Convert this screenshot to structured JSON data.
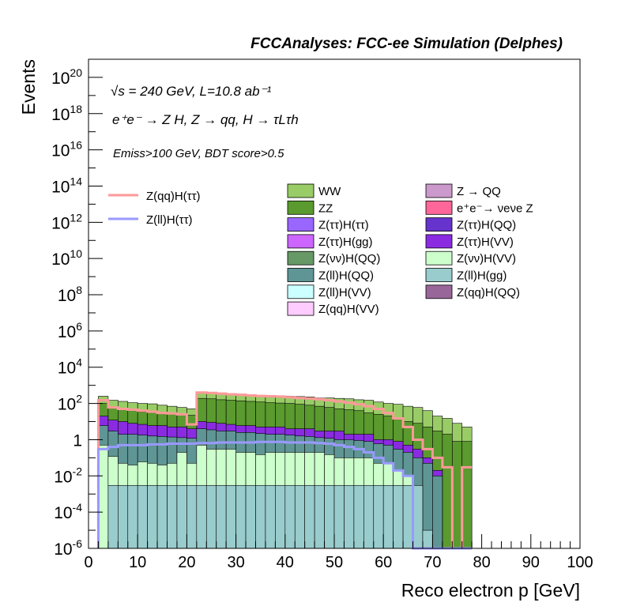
{
  "header": {
    "title": "FCCAnalyses: FCC-ee Simulation (Delphes)"
  },
  "annotations": {
    "energy_lumi": "√s = 240 GeV, L=10.8 ab⁻¹",
    "process": "e⁺e⁻ → Z H, Z → qq, H → τLτh",
    "selection": "Emiss>100 GeV, BDT score>0.5"
  },
  "chart_data": {
    "type": "area",
    "title": "FCCAnalyses: FCC-ee Simulation (Delphes)",
    "xlabel": "Reco electron p [GeV]",
    "ylabel": "Events",
    "xlim": [
      0,
      100
    ],
    "ylim": [
      1e-06,
      1e+21
    ],
    "yscale": "log",
    "grid": false,
    "x_ticks": [
      "0",
      "10",
      "20",
      "30",
      "40",
      "50",
      "60",
      "70",
      "80",
      "90",
      "100"
    ],
    "y_ticks": [
      {
        "base": "10",
        "exp": "-6",
        "value": 1e-06
      },
      {
        "base": "10",
        "exp": "-4",
        "value": 0.0001
      },
      {
        "base": "10",
        "exp": "-2",
        "value": 0.01
      },
      {
        "base": "1",
        "exp": "",
        "value": 1
      },
      {
        "base": "10",
        "exp": "2",
        "value": 100.0
      },
      {
        "base": "10",
        "exp": "4",
        "value": 10000.0
      },
      {
        "base": "10",
        "exp": "6",
        "value": 1000000.0
      },
      {
        "base": "10",
        "exp": "8",
        "value": 100000000.0
      },
      {
        "base": "10",
        "exp": "10",
        "value": 10000000000.0
      },
      {
        "base": "10",
        "exp": "12",
        "value": 1000000000000.0
      },
      {
        "base": "10",
        "exp": "14",
        "value": 100000000000000.0
      },
      {
        "base": "10",
        "exp": "16",
        "value": 1e+16
      },
      {
        "base": "10",
        "exp": "18",
        "value": 1e+18
      },
      {
        "base": "10",
        "exp": "20",
        "value": 1e+20
      }
    ],
    "bin_edges_start": 2,
    "bin_width": 2,
    "stack_tops": [
      {
        "name": "WW",
        "color": "#99cc66",
        "values": [
          250,
          150,
          130,
          110,
          100,
          95,
          80,
          70,
          60,
          50,
          420,
          420,
          380,
          350,
          330,
          300,
          280,
          270,
          260,
          250,
          240,
          230,
          200,
          200,
          190,
          180,
          160,
          150,
          120,
          100,
          90,
          70,
          60,
          40,
          20,
          15,
          8,
          5
        ]
      },
      {
        "name": "ZZ",
        "color": "#5a9a2e",
        "values": [
          100,
          60,
          50,
          40,
          35,
          32,
          30,
          28,
          25,
          22,
          190,
          180,
          160,
          150,
          140,
          130,
          120,
          110,
          105,
          100,
          90,
          80,
          70,
          60,
          50,
          45,
          40,
          30,
          25,
          20,
          15,
          10,
          8,
          5,
          3,
          2,
          0.8,
          0.8
        ]
      },
      {
        "name": "Z(ττ)H(VV)",
        "color": "#8a2be2",
        "values": [
          20,
          12,
          10,
          8,
          7,
          6,
          6,
          5,
          5,
          4,
          10,
          9,
          8,
          7,
          6,
          6,
          5,
          5,
          5,
          4,
          4,
          4,
          3,
          3,
          3,
          2,
          2,
          2,
          1,
          1,
          0.8,
          0.5,
          0.3,
          0.1,
          0.02,
          0,
          0,
          0
        ]
      },
      {
        "name": "Z(ll)H(QQ)",
        "color": "#5f9595",
        "values": [
          6,
          3,
          2,
          2,
          1.8,
          1.6,
          1.5,
          1.4,
          1.3,
          1.2,
          4,
          3.5,
          3,
          3,
          2.5,
          2.5,
          2.2,
          2,
          2,
          1.8,
          1.6,
          1.5,
          1.3,
          1.2,
          1,
          1,
          0.9,
          0.8,
          0.6,
          0.5,
          0.3,
          0.2,
          0.1,
          0.05,
          0.01,
          0,
          0,
          0
        ]
      },
      {
        "name": "Z(νν)H(VV)",
        "color": "#ccffcc",
        "values": [
          0.5,
          0.12,
          0.05,
          0.04,
          0.06,
          0.05,
          0.04,
          0.05,
          0.2,
          0.05,
          0.5,
          0.3,
          0.3,
          0.3,
          0.2,
          0.2,
          0.15,
          0.2,
          0.2,
          0.2,
          0.2,
          0.2,
          0.2,
          0.15,
          0.1,
          0.1,
          0.1,
          0.1,
          0.05,
          0.05,
          0.02,
          0.01,
          0,
          0,
          0,
          0,
          0,
          0
        ]
      },
      {
        "name": "Z(ll)H(gg)",
        "color": "#99cccc",
        "values": [
          1e-06,
          0.003,
          0.003,
          0.003,
          0.003,
          0.003,
          0.003,
          0.003,
          0.003,
          0.003,
          0.003,
          0.003,
          0.003,
          0.003,
          0.003,
          0.003,
          0.003,
          0.003,
          0.003,
          0.003,
          0.003,
          0.003,
          0.003,
          0.003,
          0.003,
          0.003,
          0.003,
          0.003,
          0.003,
          0.003,
          0.003,
          0.003,
          0.003,
          1e-05,
          1e-06,
          0,
          0,
          0
        ]
      }
    ],
    "series": [
      {
        "name": "Z(qq)H(ττ)",
        "color": "#ff9999",
        "values": [
          150,
          60,
          50,
          45,
          40,
          35,
          30,
          28,
          25,
          7,
          400,
          380,
          350,
          320,
          300,
          280,
          260,
          250,
          240,
          220,
          200,
          190,
          170,
          150,
          130,
          110,
          90,
          70,
          50,
          30,
          15,
          5,
          1,
          0.3,
          0.1,
          0.03,
          1e-06,
          0.03
        ]
      },
      {
        "name": "Z(ll)H(ττ)",
        "color": "#9999ff",
        "values": [
          0.3,
          0.4,
          0.5,
          0.5,
          0.5,
          0.55,
          0.55,
          0.6,
          0.6,
          0.6,
          0.65,
          0.65,
          0.7,
          0.7,
          0.7,
          0.7,
          0.75,
          0.75,
          0.75,
          0.7,
          0.7,
          0.7,
          0.65,
          0.6,
          0.5,
          0.4,
          0.3,
          0.2,
          0.1,
          0.05,
          0.02,
          0.01,
          0,
          0,
          0,
          0,
          0,
          0
        ]
      }
    ],
    "legend_left": [
      {
        "label": "Z(qq)H(ττ)",
        "color": "#ff9999"
      },
      {
        "label": "Z(ll)H(ττ)",
        "color": "#9999ff"
      }
    ],
    "legend_right": [
      {
        "label": "WW",
        "color": "#99cc66"
      },
      {
        "label": "Z → QQ",
        "color": "#cc99cc"
      },
      {
        "label": "ZZ",
        "color": "#5a9a2e"
      },
      {
        "label": "e⁺e⁻→ νeνe Z",
        "color": "#ff6699"
      },
      {
        "label": "Z(ττ)H(ττ)",
        "color": "#9966ff"
      },
      {
        "label": "Z(ττ)H(QQ)",
        "color": "#6633cc"
      },
      {
        "label": "Z(ττ)H(gg)",
        "color": "#cc66ff"
      },
      {
        "label": "Z(ττ)H(VV)",
        "color": "#8a2be2"
      },
      {
        "label": "Z(νν)H(QQ)",
        "color": "#669966"
      },
      {
        "label": "Z(νν)H(VV)",
        "color": "#ccffcc"
      },
      {
        "label": "Z(ll)H(QQ)",
        "color": "#5f9595"
      },
      {
        "label": "Z(ll)H(gg)",
        "color": "#99cccc"
      },
      {
        "label": "Z(ll)H(VV)",
        "color": "#ccffff"
      },
      {
        "label": "Z(qq)H(QQ)",
        "color": "#996699"
      },
      {
        "label": "Z(qq)H(VV)",
        "color": "#ffccff"
      }
    ]
  }
}
